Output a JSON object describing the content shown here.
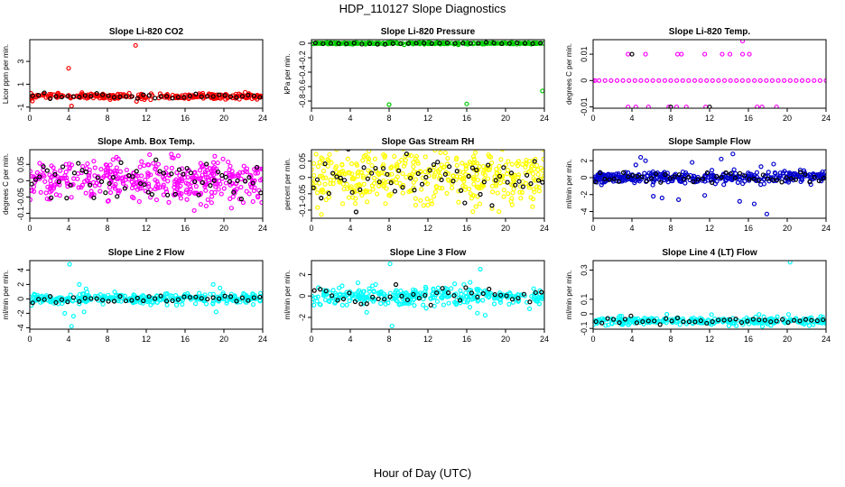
{
  "figure": {
    "title": "HDP_110127  Slope Diagnostics",
    "xlabel": "Hour of Day (UTC)"
  },
  "chart_data": [
    {
      "type": "scatter",
      "title": "Slope Li-820 CO2",
      "ylabel": "Licor ppm per min.",
      "color": "#ff0000",
      "xlim": [
        0,
        24
      ],
      "ylim": [
        -1.1,
        4.9
      ],
      "yticks": [
        -1,
        1,
        3
      ],
      "xticks": [
        0,
        4,
        8,
        12,
        16,
        20,
        24
      ],
      "center": -0.05,
      "spread": 0.12,
      "n": 260,
      "black_n": 40,
      "outliers": [
        [
          4,
          2.4
        ],
        [
          10.9,
          4.4
        ],
        [
          11,
          -0.5
        ],
        [
          4.3,
          -0.9
        ]
      ]
    },
    {
      "type": "scatter",
      "title": "Slope Li-820 Pressure",
      "ylabel": "kPa per min.",
      "color": "#00cc00",
      "xlim": [
        0,
        24
      ],
      "ylim": [
        -0.9,
        0.05
      ],
      "yticks": [
        0,
        -0.2,
        -0.4,
        -0.6,
        -0.8
      ],
      "xticks": [
        0,
        4,
        8,
        12,
        16,
        20,
        24
      ],
      "center": 0,
      "spread": 0.006,
      "n": 300,
      "black_n": 30,
      "outliers": [
        [
          8,
          -0.85
        ],
        [
          16,
          -0.84
        ],
        [
          23.8,
          -0.66
        ]
      ]
    },
    {
      "type": "scatter",
      "title": "Slope Li-820 Temp.",
      "ylabel": "degrees C per min.",
      "color": "#ff00ff",
      "xlim": [
        0,
        24
      ],
      "ylim": [
        -0.0105,
        0.0155
      ],
      "yticks": [
        -0.01,
        0,
        0.01
      ],
      "xticks": [
        0,
        4,
        8,
        12,
        16,
        20,
        24
      ],
      "center": 0,
      "spread": 0,
      "n": 40,
      "black_n": 0,
      "outliers": [
        [
          3.6,
          0.01
        ],
        [
          5.4,
          0.01
        ],
        [
          8.7,
          0.01
        ],
        [
          9.1,
          0.01
        ],
        [
          11.5,
          0.01
        ],
        [
          13.3,
          0.01
        ],
        [
          14.1,
          0.01
        ],
        [
          15.4,
          0.01
        ],
        [
          16.1,
          0.01
        ],
        [
          3.6,
          -0.01
        ],
        [
          4.4,
          -0.01
        ],
        [
          5.7,
          -0.01
        ],
        [
          7.8,
          -0.01
        ],
        [
          8.6,
          -0.01
        ],
        [
          9.6,
          -0.01
        ],
        [
          11.6,
          -0.01
        ],
        [
          16.9,
          -0.01
        ],
        [
          17.4,
          -0.01
        ],
        [
          18.9,
          -0.01
        ],
        [
          15.4,
          0.015
        ],
        [
          0.2,
          0
        ]
      ],
      "black_points": [
        [
          4,
          0.01
        ],
        [
          8,
          -0.01
        ],
        [
          12,
          -0.01
        ]
      ]
    },
    {
      "type": "scatter",
      "title": "Slope Amb. Box Temp.",
      "ylabel": "degrees C per min.",
      "color": "#ff00ff",
      "xlim": [
        0,
        24
      ],
      "ylim": [
        -0.115,
        0.095
      ],
      "yticks": [
        -0.1,
        -0.05,
        0,
        0.05
      ],
      "xticks": [
        0,
        4,
        8,
        12,
        16,
        20,
        24
      ],
      "center": 0,
      "spread": 0.032,
      "n": 420,
      "black_n": 60,
      "outliers": []
    },
    {
      "type": "scatter",
      "title": "Slope Gas Stream RH",
      "ylabel": "percent per min.",
      "color": "#ffff00",
      "xlim": [
        0,
        24
      ],
      "ylim": [
        -0.125,
        0.085
      ],
      "yticks": [
        -0.1,
        -0.05,
        0,
        0.05
      ],
      "xticks": [
        0,
        4,
        8,
        12,
        16,
        20,
        24
      ],
      "center": 0,
      "spread": 0.04,
      "n": 420,
      "black_n": 60,
      "outliers": []
    },
    {
      "type": "scatter",
      "title": "Slope Sample Flow",
      "ylabel": "ml/min per min.",
      "color": "#0000cc",
      "xlim": [
        0,
        24
      ],
      "ylim": [
        -4.8,
        3.3
      ],
      "yticks": [
        -4,
        -2,
        0,
        2
      ],
      "xticks": [
        0,
        4,
        8,
        12,
        16,
        20,
        24
      ],
      "center": 0,
      "spread": 0.35,
      "n": 360,
      "black_n": 50,
      "outliers": [
        [
          4.4,
          1.5
        ],
        [
          4.9,
          2.4
        ],
        [
          5.4,
          2
        ],
        [
          6.2,
          -2.2
        ],
        [
          7.1,
          -2.4
        ],
        [
          8.8,
          -2.6
        ],
        [
          10.2,
          1.8
        ],
        [
          11.5,
          -2.1
        ],
        [
          13.2,
          2.2
        ],
        [
          14.4,
          2.8
        ],
        [
          15.1,
          -2.8
        ],
        [
          16.6,
          -3.1
        ],
        [
          17.3,
          1.3
        ],
        [
          17.9,
          -4.3
        ],
        [
          18.6,
          1.6
        ]
      ]
    },
    {
      "type": "scatter",
      "title": "Slope Line 2 Flow",
      "ylabel": "ml/min per min.",
      "color": "#00ffff",
      "xlim": [
        0,
        24
      ],
      "ylim": [
        -4.2,
        5.3
      ],
      "yticks": [
        -4,
        -2,
        0,
        2,
        4
      ],
      "xticks": [
        0,
        4,
        8,
        12,
        16,
        20,
        24
      ],
      "center": 0,
      "spread": 0.35,
      "n": 320,
      "black_n": 40,
      "outliers": [
        [
          4.1,
          4.8
        ],
        [
          4.5,
          -2.4
        ],
        [
          5.1,
          2
        ],
        [
          3.6,
          -2
        ],
        [
          5.6,
          -1.8
        ],
        [
          18.9,
          2
        ],
        [
          19.2,
          -1.8
        ],
        [
          19.6,
          1.5
        ],
        [
          5.8,
          1.4
        ],
        [
          4.3,
          -3.8
        ]
      ]
    },
    {
      "type": "scatter",
      "title": "Slope Line 3 Flow",
      "ylabel": "ml/min per min.",
      "color": "#00ffff",
      "xlim": [
        0,
        24
      ],
      "ylim": [
        -3.1,
        3.3
      ],
      "yticks": [
        -2,
        0,
        2
      ],
      "xticks": [
        0,
        4,
        8,
        12,
        16,
        20,
        24
      ],
      "center": 0,
      "spread": 0.45,
      "n": 320,
      "black_n": 40,
      "outliers": [
        [
          8.1,
          3
        ],
        [
          8.3,
          -2.8
        ],
        [
          17.4,
          2.5
        ],
        [
          17.9,
          -1.8
        ],
        [
          17.1,
          -1.6
        ]
      ]
    },
    {
      "type": "scatter",
      "title": "Slope Line 4 (LT) Flow",
      "ylabel": "ml/min per min.",
      "color": "#00ffff",
      "xlim": [
        0,
        24
      ],
      "ylim": [
        -0.105,
        0.365
      ],
      "yticks": [
        -0.1,
        0,
        0.1,
        0.3
      ],
      "xticks": [
        0,
        4,
        8,
        12,
        16,
        20,
        24
      ],
      "center": -0.05,
      "spread": 0.012,
      "n": 300,
      "black_n": 40,
      "outliers": [
        [
          20.3,
          0.355
        ],
        [
          7.6,
          -0.003
        ],
        [
          12.2,
          -0.005
        ],
        [
          17.1,
          -0.004
        ]
      ]
    }
  ]
}
